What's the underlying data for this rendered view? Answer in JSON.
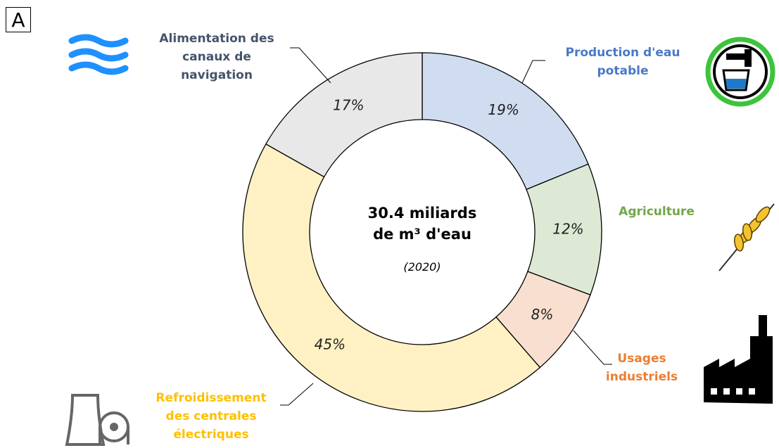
{
  "panel_label": "A",
  "chart_data": {
    "type": "donut",
    "categories": [
      "Production d'eau\npotable",
      "Agriculture",
      "Usages\nindustriels",
      "Refroidissement\ndes centrales\nélectriques",
      "Alimentation des\ncanaux de\nnavigation"
    ],
    "values": [
      19,
      12,
      8,
      45,
      17
    ],
    "value_labels": [
      "19%",
      "12%",
      "8%",
      "45%",
      "17%"
    ],
    "colors": [
      "#d0ddf1",
      "#dde9d4",
      "#f9dfcf",
      "#fff1c4",
      "#e8e8e8"
    ],
    "label_colors": [
      "#4a78c8",
      "#70a848",
      "#ed7d31",
      "#ffc000",
      "#44546a"
    ],
    "center_text": "30.4 miliards\nde m³ d'eau",
    "center_subtext": "(2020)"
  }
}
